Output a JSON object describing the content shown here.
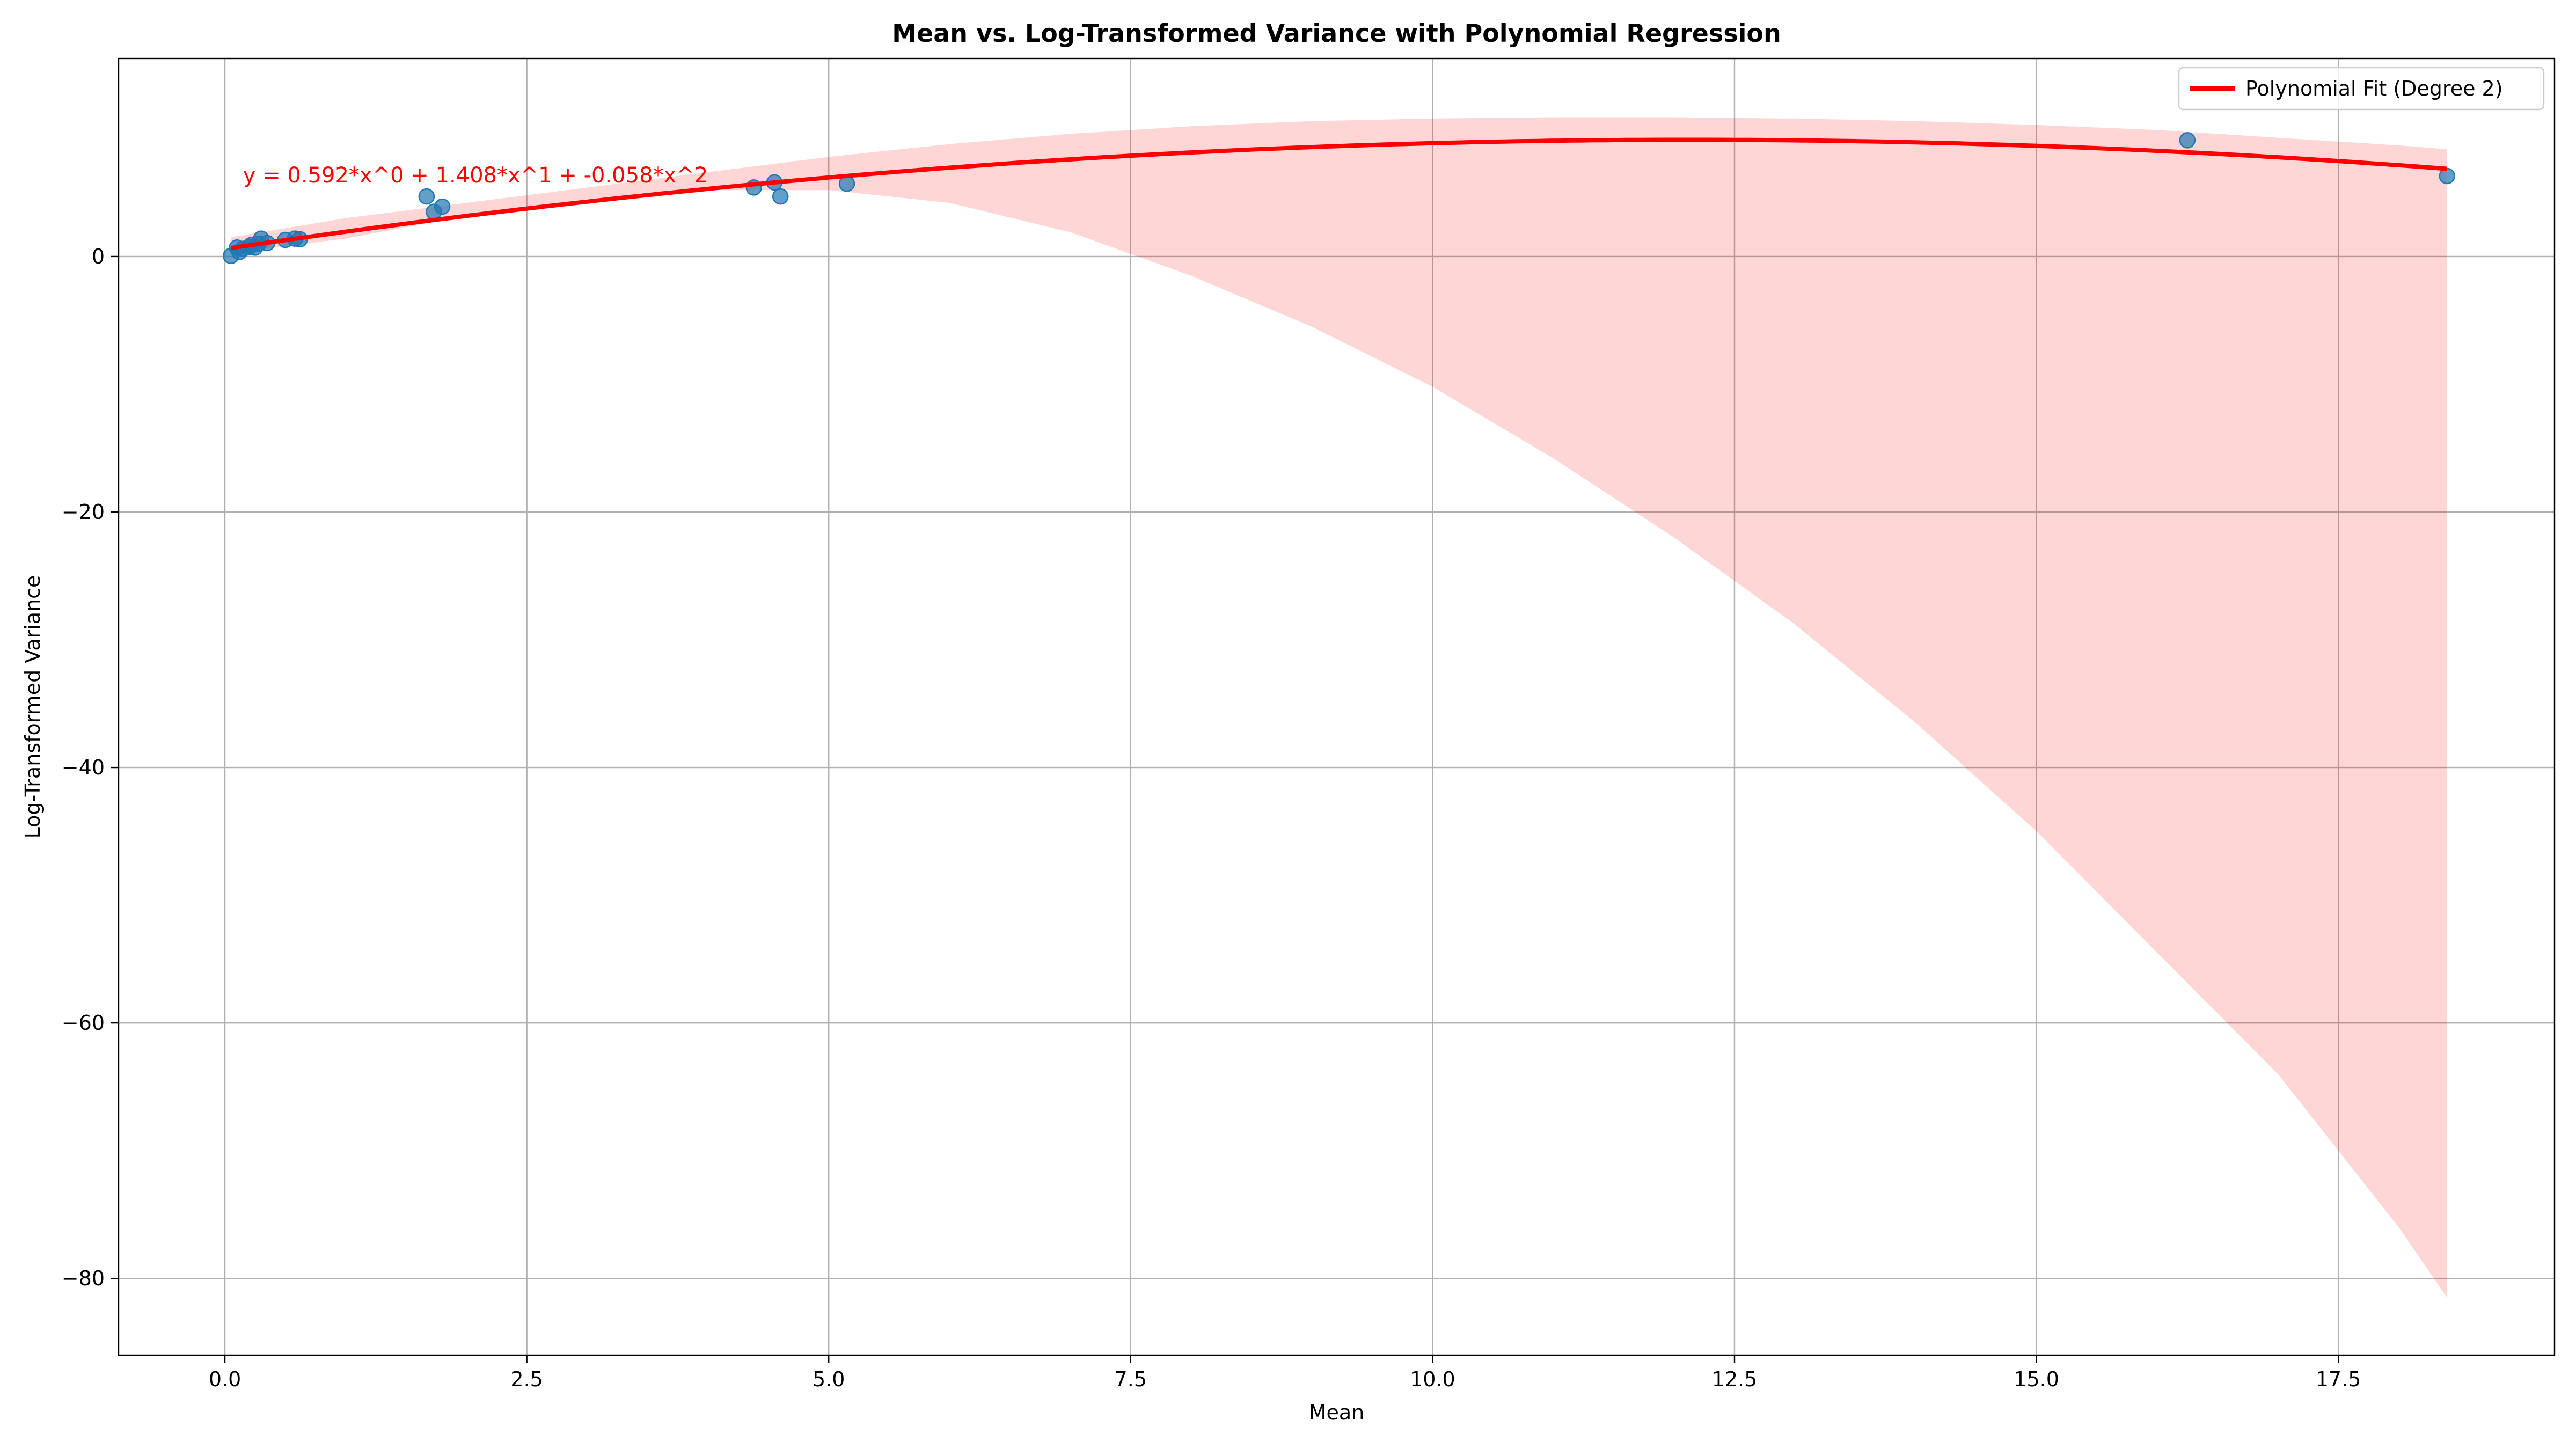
{
  "chart_data": {
    "type": "scatter",
    "title": "Mean vs. Log-Transformed Variance with Polynomial Regression",
    "xlabel": "Mean",
    "ylabel": "Log-Transformed Variance",
    "xlim": [
      -0.88,
      19.29
    ],
    "ylim": [
      -86.0,
      15.5
    ],
    "xticks": [
      0.0,
      2.5,
      5.0,
      7.5,
      10.0,
      12.5,
      15.0,
      17.5
    ],
    "xtick_labels": [
      "0.0",
      "2.5",
      "5.0",
      "7.5",
      "10.0",
      "12.5",
      "15.0",
      "17.5"
    ],
    "yticks": [
      0,
      -20,
      -40,
      -60,
      -80
    ],
    "ytick_labels": [
      "0",
      "−20",
      "−40",
      "−60",
      "−80"
    ],
    "grid": true,
    "legend": {
      "position": "top-right",
      "entries": [
        "Polynomial Fit (Degree 2)"
      ]
    },
    "annotation": {
      "text": "y = 0.592*x^0 + 1.408*x^1 + -0.058*x^2",
      "x": 0.15,
      "y": 5.8
    },
    "series": [
      {
        "kind": "scatter",
        "color": "#1f77b4",
        "x": [
          0.05,
          0.1,
          0.12,
          0.15,
          0.2,
          0.22,
          0.25,
          0.28,
          0.3,
          0.35,
          0.5,
          0.58,
          0.62,
          1.67,
          1.73,
          1.8,
          4.38,
          4.55,
          4.6,
          5.15,
          16.25,
          18.4
        ],
        "y": [
          0.05,
          0.7,
          0.35,
          0.6,
          0.75,
          0.9,
          0.7,
          1.0,
          1.4,
          1.05,
          1.3,
          1.4,
          1.35,
          4.7,
          3.5,
          3.9,
          5.4,
          5.8,
          4.7,
          5.7,
          9.1,
          6.3
        ]
      },
      {
        "kind": "line",
        "name": "Polynomial Fit (Degree 2)",
        "color": "#ff0000",
        "coefficients": [
          0.592,
          1.408,
          -0.058
        ],
        "x_range": [
          0.05,
          18.4
        ]
      },
      {
        "kind": "band",
        "color": "#ff0000",
        "opacity": 0.16,
        "x": [
          0.05,
          1.0,
          2.0,
          3.0,
          4.0,
          5.0,
          6.0,
          7.0,
          8.0,
          9.0,
          10.0,
          11.0,
          12.0,
          13.0,
          14.0,
          15.0,
          16.0,
          17.0,
          18.0,
          18.4
        ],
        "upper": [
          1.5,
          3.0,
          4.2,
          5.4,
          6.6,
          7.8,
          8.8,
          9.6,
          10.2,
          10.6,
          10.8,
          10.9,
          10.9,
          10.8,
          10.6,
          10.3,
          9.9,
          9.3,
          8.7,
          8.4
        ],
        "lower": [
          0.3,
          1.4,
          3.2,
          4.5,
          5.2,
          5.2,
          4.2,
          1.9,
          -1.5,
          -5.5,
          -10.2,
          -15.8,
          -22.0,
          -28.8,
          -36.5,
          -45.0,
          -54.5,
          -64.0,
          -76.0,
          -81.5
        ]
      }
    ]
  }
}
